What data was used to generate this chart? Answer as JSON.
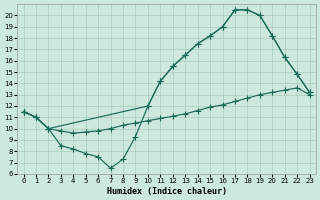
{
  "bg_color": "#cde8dc",
  "grid_color": "#a8ccbc",
  "line_color": "#1a6a5a",
  "line1_x": [
    0,
    1,
    2,
    10,
    11,
    12,
    13,
    14,
    15,
    16,
    17,
    18,
    19,
    20,
    21,
    22,
    23
  ],
  "line1_y": [
    11.5,
    11.0,
    10.0,
    12.0,
    14.2,
    15.5,
    16.5,
    17.5,
    18.2,
    19.0,
    20.5,
    20.5,
    20.0,
    18.2,
    16.3,
    14.8,
    13.2
  ],
  "line2_x": [
    0,
    1,
    2,
    3,
    4,
    5,
    6,
    7,
    8,
    9,
    10,
    11,
    12,
    13,
    14,
    15,
    16,
    17,
    18,
    19,
    20,
    21,
    22,
    23
  ],
  "line2_y": [
    11.5,
    11.0,
    10.0,
    8.5,
    8.2,
    7.8,
    7.5,
    6.5,
    7.3,
    9.3,
    12.0,
    14.2,
    15.5,
    16.5,
    17.5,
    18.2,
    19.0,
    20.5,
    20.5,
    20.0,
    18.2,
    16.3,
    14.8,
    13.2
  ],
  "line3_x": [
    0,
    1,
    2,
    3,
    4,
    5,
    6,
    7,
    8,
    9,
    10,
    11,
    12,
    13,
    14,
    15,
    16,
    17,
    18,
    19,
    20,
    21,
    22,
    23
  ],
  "line3_y": [
    11.5,
    11.0,
    10.0,
    9.8,
    9.6,
    9.7,
    9.8,
    10.0,
    10.3,
    10.5,
    10.7,
    10.9,
    11.1,
    11.3,
    11.6,
    11.9,
    12.1,
    12.4,
    12.7,
    13.0,
    13.2,
    13.4,
    13.6,
    13.0
  ],
  "xlim": [
    -0.5,
    23.5
  ],
  "ylim": [
    6,
    21
  ],
  "yticks": [
    6,
    7,
    8,
    9,
    10,
    11,
    12,
    13,
    14,
    15,
    16,
    17,
    18,
    19,
    20
  ],
  "xticks": [
    0,
    1,
    2,
    3,
    4,
    5,
    6,
    7,
    8,
    9,
    10,
    11,
    12,
    13,
    14,
    15,
    16,
    17,
    18,
    19,
    20,
    21,
    22,
    23
  ],
  "xlabel": "Humidex (Indice chaleur)",
  "figsize": [
    3.2,
    2.0
  ],
  "dpi": 100
}
